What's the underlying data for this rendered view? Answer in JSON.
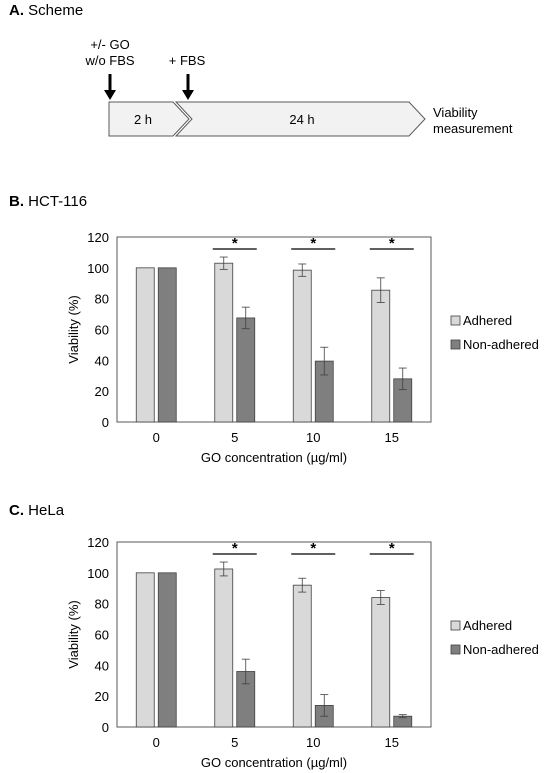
{
  "panels": {
    "a": {
      "letter": "A.",
      "title": "Scheme"
    },
    "b": {
      "letter": "B.",
      "title": "HCT-116"
    },
    "c": {
      "letter": "C.",
      "title": "HeLa"
    }
  },
  "scheme": {
    "step1_line1": "+/- GO",
    "step1_line2": "w/o FBS",
    "step2": "+ FBS",
    "seg1": "2 h",
    "seg2": "24 h",
    "end_line1": "Viability",
    "end_line2": "measurement"
  },
  "colors": {
    "adhered": "#d9d9d9",
    "nonadhered": "#7f7f7f",
    "border": "#404040"
  },
  "chart_data": [
    {
      "type": "bar",
      "title": "HCT-116",
      "xlabel": "GO concentration (µg/ml)",
      "ylabel": "Viability (%)",
      "categories": [
        "0",
        "5",
        "10",
        "15"
      ],
      "ylim": [
        0,
        120
      ],
      "yticks": [
        0,
        20,
        40,
        60,
        80,
        100,
        120
      ],
      "series": [
        {
          "name": "Adhered",
          "values": [
            100,
            103,
            98.5,
            85.5
          ],
          "errors": [
            0,
            4,
            4,
            8
          ]
        },
        {
          "name": "Non-adhered",
          "values": [
            100,
            67.5,
            39.5,
            28
          ],
          "errors": [
            0,
            7,
            9,
            7
          ]
        }
      ],
      "significance": [
        "",
        "*",
        "*",
        "*"
      ],
      "legend": "right"
    },
    {
      "type": "bar",
      "title": "HeLa",
      "xlabel": "GO concentration (µg/ml)",
      "ylabel": "Viability (%)",
      "categories": [
        "0",
        "5",
        "10",
        "15"
      ],
      "ylim": [
        0,
        120
      ],
      "yticks": [
        0,
        20,
        40,
        60,
        80,
        100,
        120
      ],
      "series": [
        {
          "name": "Adhered",
          "values": [
            100,
            102.5,
            92,
            84
          ],
          "errors": [
            0,
            4.5,
            4.5,
            4.5
          ]
        },
        {
          "name": "Non-adhered",
          "values": [
            100,
            36,
            14,
            7
          ],
          "errors": [
            0,
            8,
            7,
            1
          ]
        }
      ],
      "significance": [
        "",
        "*",
        "*",
        "*"
      ],
      "legend": "right"
    }
  ]
}
